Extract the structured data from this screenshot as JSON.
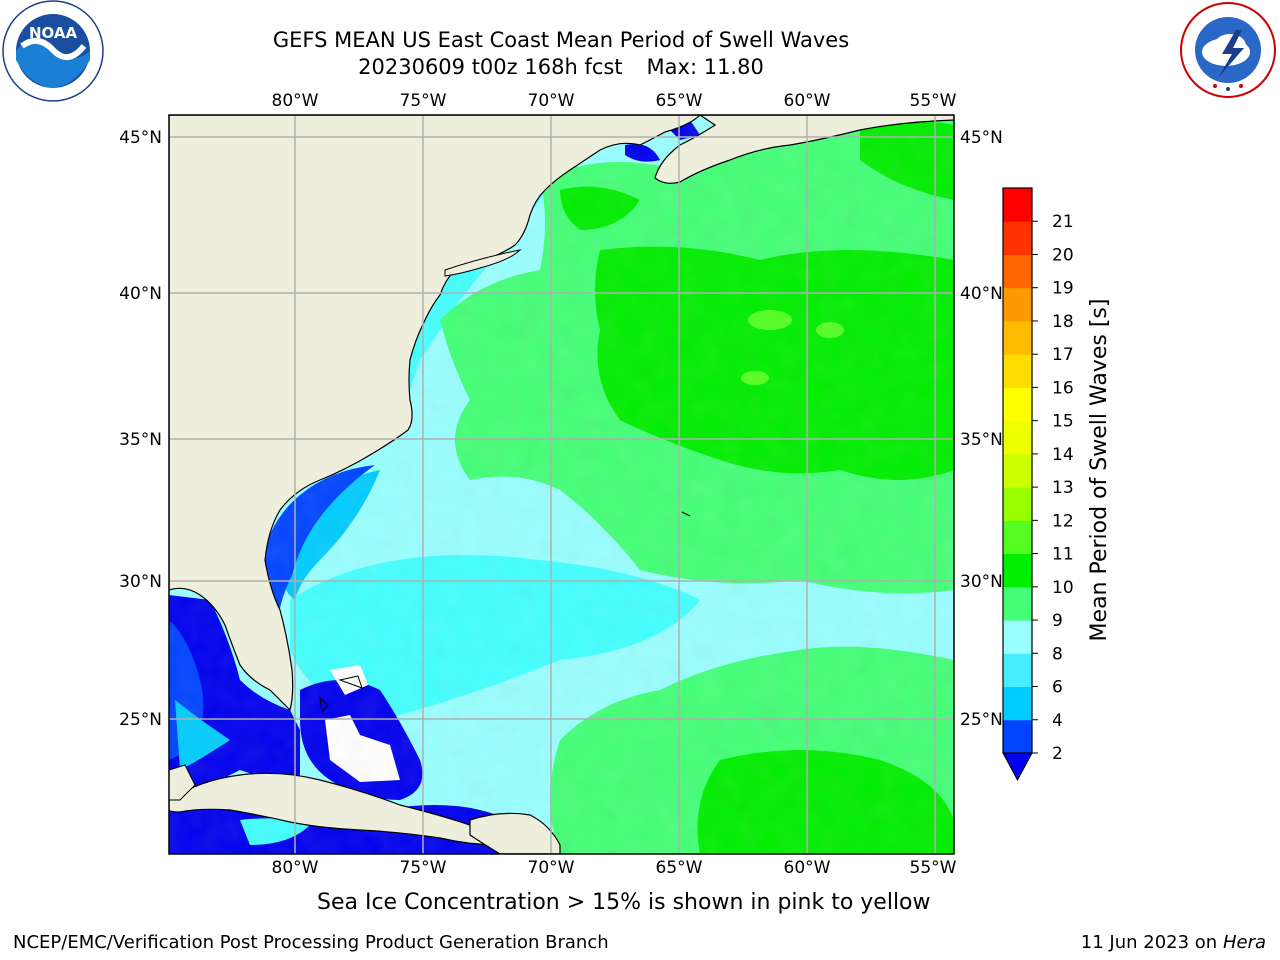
{
  "header": {
    "title_line1": "GEFS MEAN US East Coast Mean Period of Swell Waves",
    "title_date": "20230609 t00z 168h fcst",
    "title_max": "Max: 11.80"
  },
  "logos": {
    "left": "noaa-logo",
    "left_text": "NOAA",
    "right": "nws-logo",
    "right_text": "NATIONAL WEATHER SERVICE"
  },
  "map": {
    "lon_ticks": [
      "80°W",
      "75°W",
      "70°W",
      "65°W",
      "60°W",
      "55°W"
    ],
    "lat_ticks": [
      "45°N",
      "40°N",
      "35°N",
      "30°N",
      "25°N"
    ],
    "colors": {
      "land": "#eeeedd",
      "grid": "#b0b0b0"
    }
  },
  "colorbar": {
    "label": "Mean Period of Swell Waves [s]",
    "ticks": [
      "2",
      "4",
      "6",
      "8",
      "9",
      "10",
      "11",
      "12",
      "13",
      "14",
      "15",
      "16",
      "17",
      "18",
      "19",
      "20",
      "21"
    ],
    "colors": [
      "#0044ff",
      "#00ccff",
      "#44eeff",
      "#99ffff",
      "#44ff77",
      "#00ee00",
      "#55ff22",
      "#99ff00",
      "#ccff00",
      "#eeff00",
      "#ffff00",
      "#ffdd00",
      "#ffbb00",
      "#ff9900",
      "#ff6600",
      "#ff3300",
      "#ff0000"
    ],
    "under_color": "#0000ee"
  },
  "footer": {
    "note": "Sea Ice Concentration > 15% is shown in pink to yellow",
    "credit_left": "NCEP/EMC/Verification Post Processing Product Generation Branch",
    "credit_date": "11 Jun 2023 on",
    "credit_host": "Hera"
  }
}
